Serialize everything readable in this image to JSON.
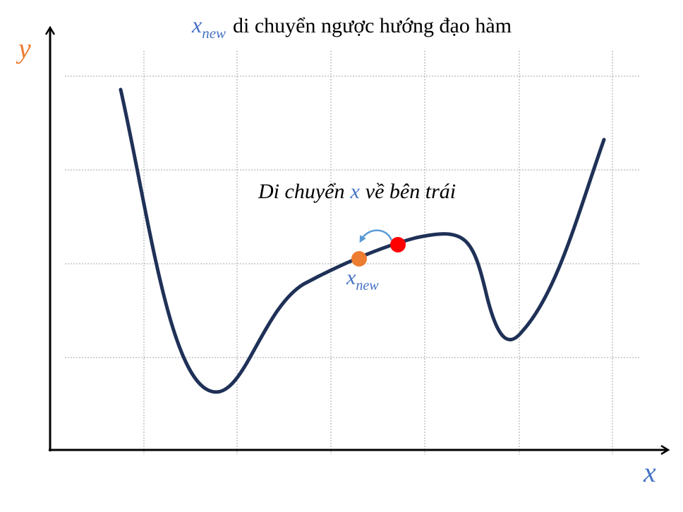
{
  "title": {
    "var_base": "x",
    "var_sub": "new",
    "text": "di chuyển ngược hướng đạo hàm"
  },
  "axes": {
    "y_label": "y",
    "x_label": "x"
  },
  "annotation": {
    "prefix": "Di chuyển",
    "var": "x",
    "suffix": "về bên trái"
  },
  "point_label": {
    "base": "x",
    "sub": "new"
  },
  "colors": {
    "curve": "#1f3157",
    "var_blue": "#4472c4",
    "y_orange": "#ed7d31",
    "x_new_point": "#ed7d31",
    "current_point": "#ff0000",
    "arrow": "#5b9bd5",
    "grid": "#a6a6a6",
    "axis": "#000000"
  }
}
